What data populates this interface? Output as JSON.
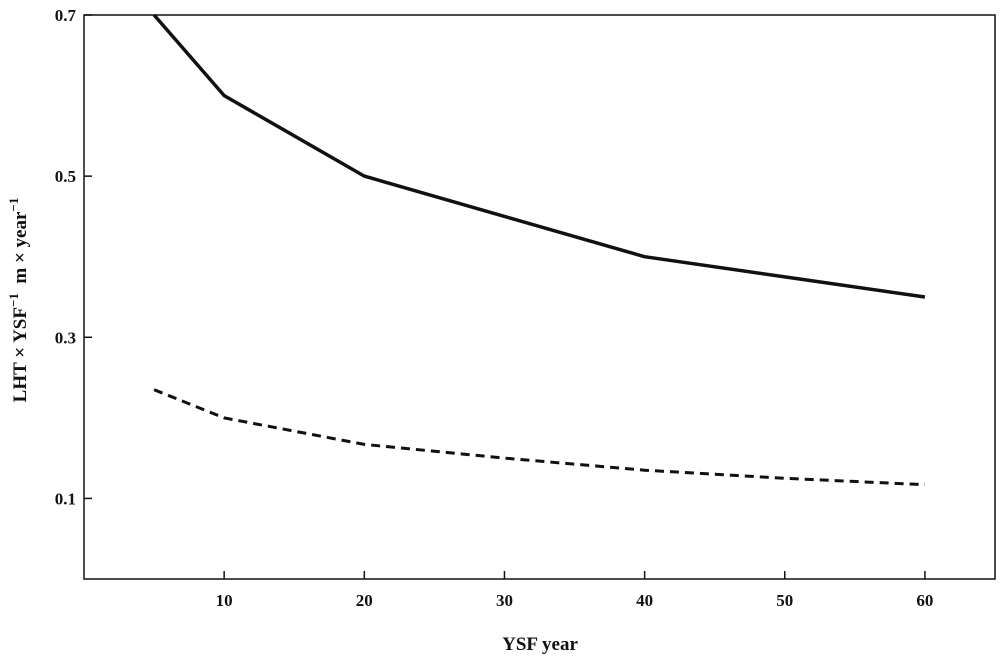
{
  "chart_data": {
    "type": "line",
    "title": "",
    "xlabel": "YSF year",
    "ylabel": {
      "text": "LHT × YSF",
      "sup1": "−1",
      "unit": "  m × year",
      "sup2": "−1"
    },
    "xlim": [
      0,
      65
    ],
    "ylim": [
      0,
      0.7
    ],
    "xticks": [
      10,
      20,
      30,
      40,
      50,
      60
    ],
    "yticks": [
      0.1,
      0.3,
      0.5,
      0.7
    ],
    "grid": false,
    "legend": "none",
    "series": [
      {
        "style": "solid",
        "color": "#111111",
        "x": [
          5,
          10,
          20,
          30,
          40,
          50,
          60
        ],
        "y": [
          0.7,
          0.6,
          0.5,
          0.45,
          0.4,
          0.375,
          0.35
        ]
      },
      {
        "style": "dashed",
        "color": "#111111",
        "x": [
          5,
          10,
          20,
          30,
          40,
          50,
          60
        ],
        "y": [
          0.235,
          0.2,
          0.167,
          0.15,
          0.135,
          0.125,
          0.117
        ]
      }
    ]
  }
}
